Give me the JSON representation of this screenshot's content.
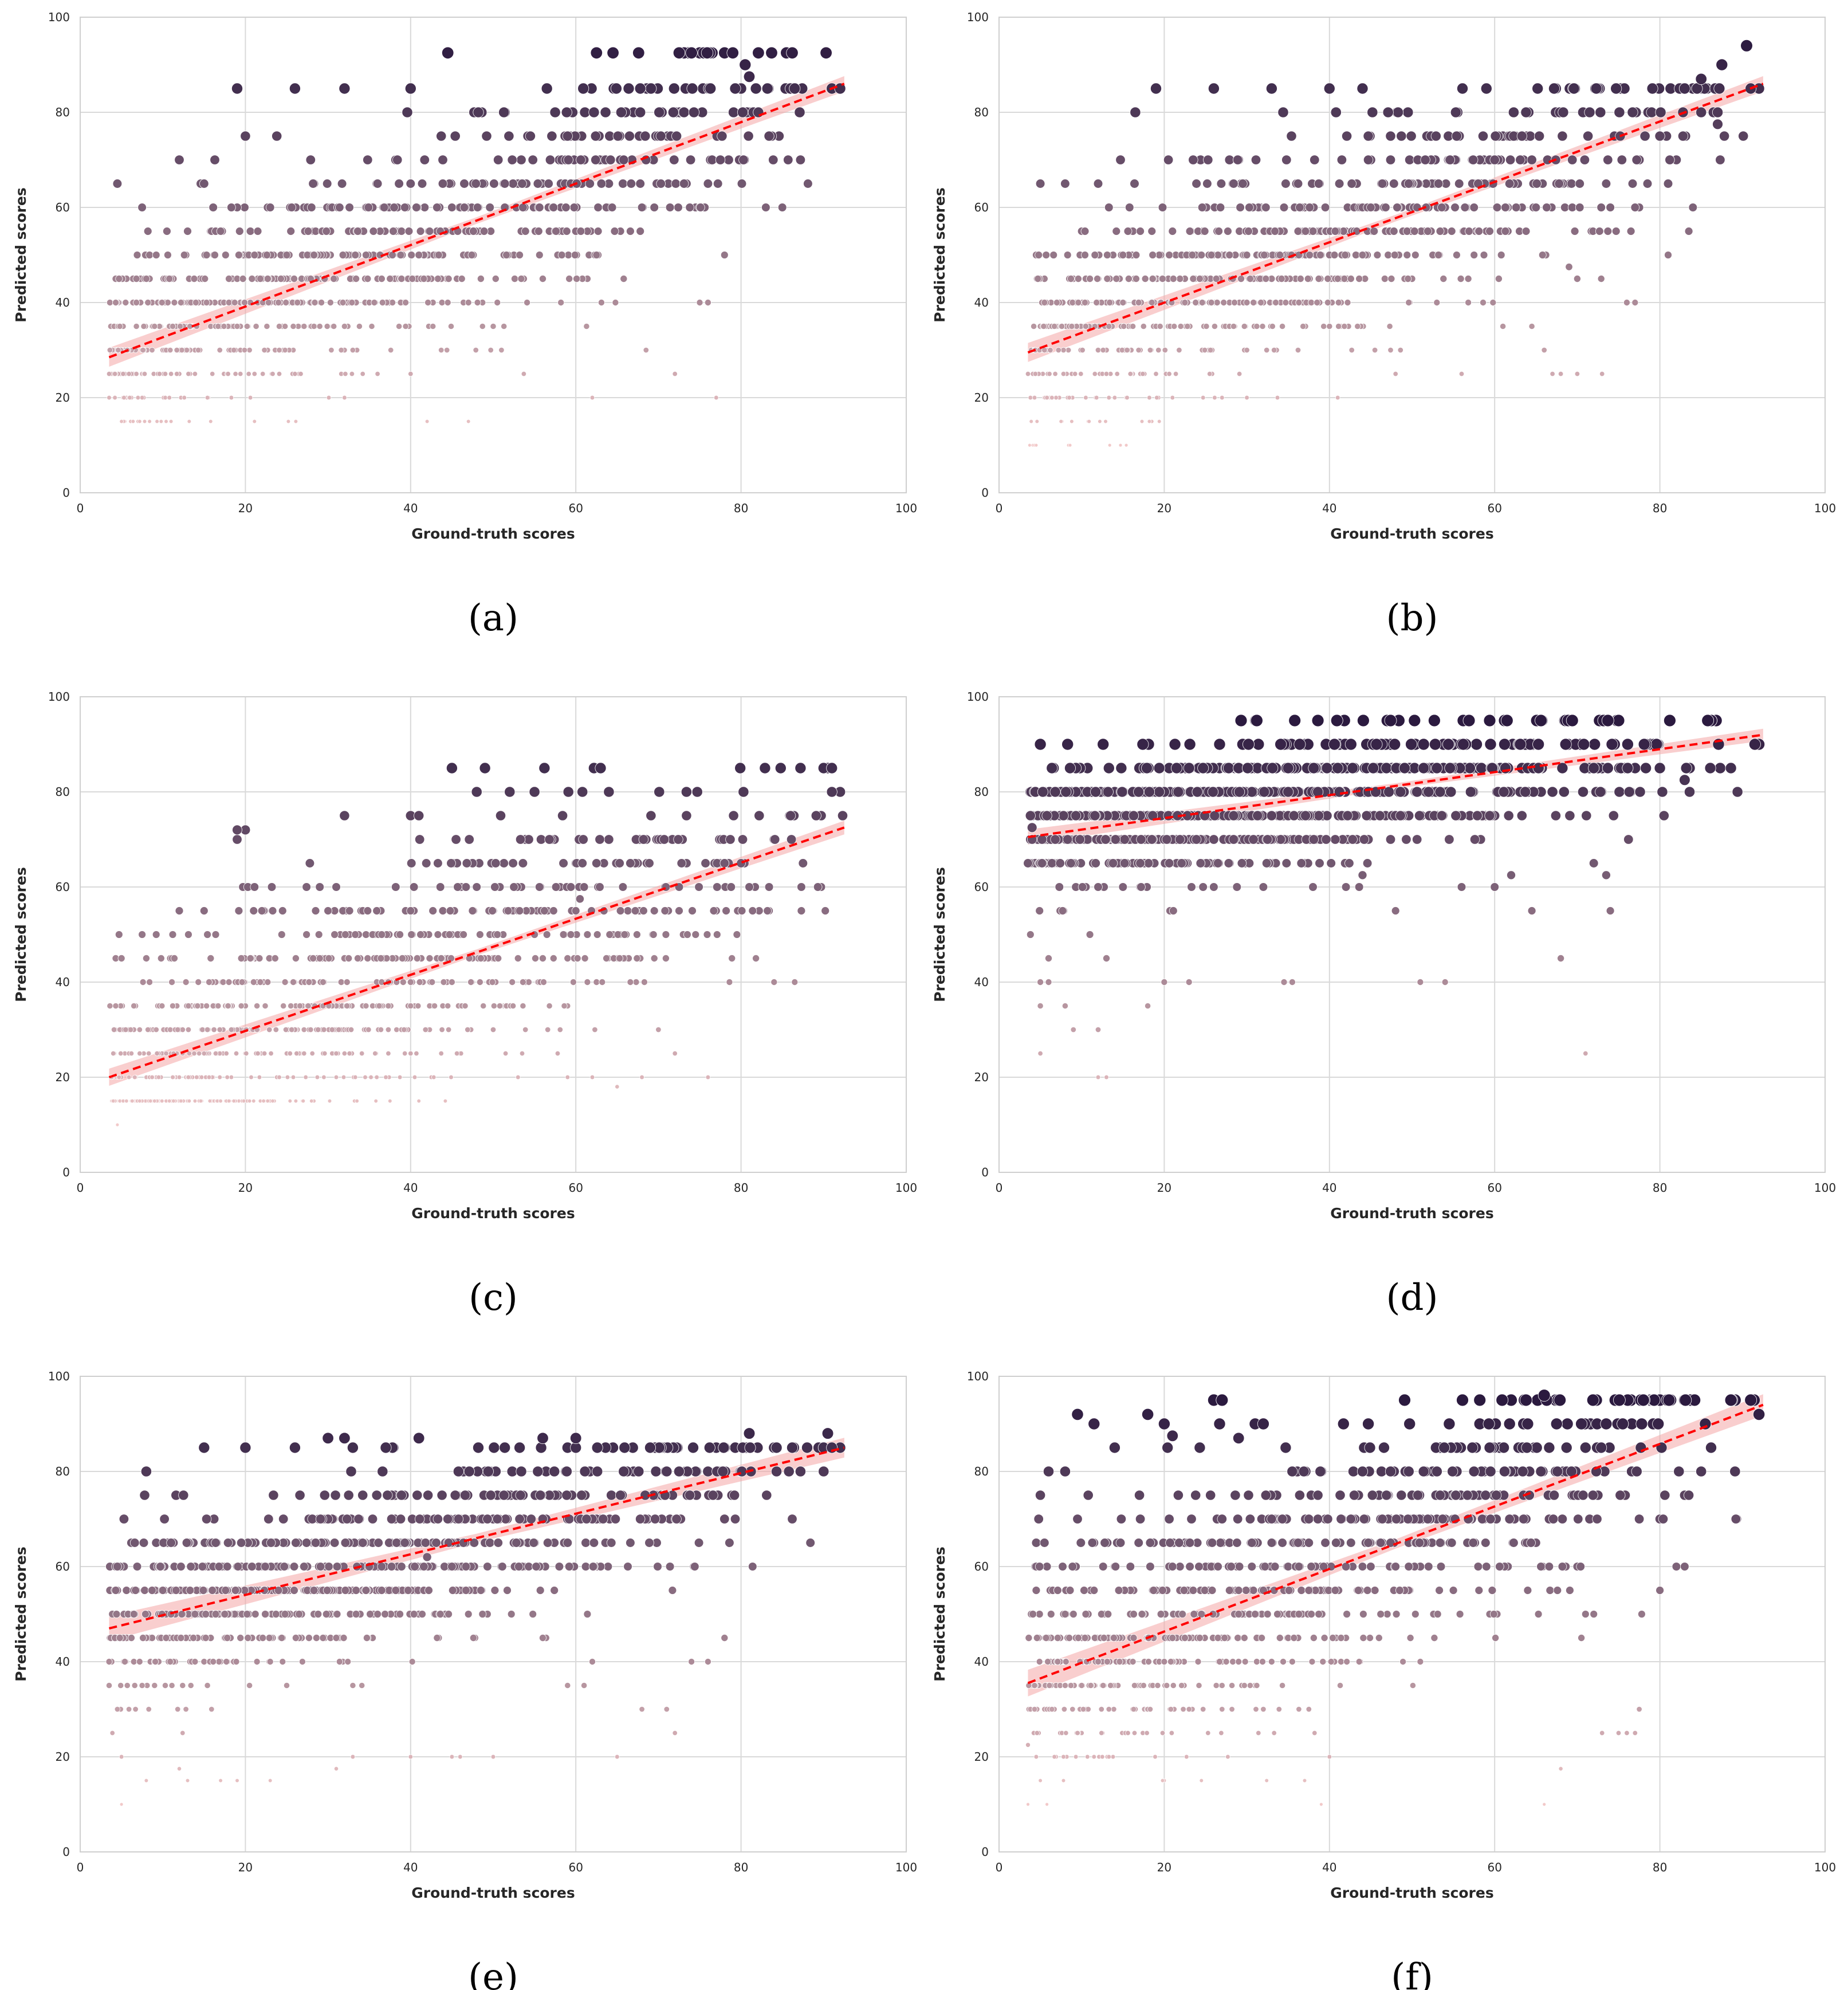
{
  "figure": {
    "background": "#ffffff"
  },
  "style": {
    "grid_color": "#d9d9d9",
    "frame_color": "#cfcfcf",
    "fit_color": "#ff0000",
    "band_color": "#f4a6a6",
    "palette_light": "#f2c9c9",
    "palette_dark": "#2b1a3f"
  },
  "chart_data": [
    {
      "id": "a",
      "type": "scatter",
      "caption": "(a)",
      "xlabel": "Ground-truth scores",
      "ylabel": "Predicted scores",
      "xlim": [
        0,
        100
      ],
      "ylim": [
        0,
        100
      ],
      "xticks": [
        "0",
        "20",
        "40",
        "60",
        "80",
        "100"
      ],
      "yticks": [
        "0",
        "20",
        "40",
        "60",
        "80",
        "100"
      ],
      "grid": true,
      "legend": "none",
      "fit": {
        "x": [
          3.5,
          92.5
        ],
        "y": [
          28.5,
          86
        ],
        "band": 2.0
      },
      "y_levels": [
        15,
        20,
        25,
        30,
        35,
        40,
        45,
        50,
        55,
        60,
        65,
        70,
        75,
        80,
        85,
        92.5
      ],
      "noise": 11,
      "x_min": 3.5,
      "x_max": 92.5,
      "points": [
        [
          3.5,
          25
        ],
        [
          4.5,
          65
        ],
        [
          7.5,
          60
        ],
        [
          12,
          70
        ],
        [
          15,
          65
        ],
        [
          19,
          85
        ],
        [
          20,
          75
        ],
        [
          23,
          60
        ],
        [
          26,
          85
        ],
        [
          32,
          85
        ],
        [
          40,
          85
        ],
        [
          44.5,
          92.5
        ],
        [
          62.5,
          92.5
        ],
        [
          64.5,
          92.5
        ],
        [
          72.5,
          92.5
        ],
        [
          78,
          92.5
        ],
        [
          79,
          92.5
        ],
        [
          80.5,
          90
        ],
        [
          81,
          87.5
        ],
        [
          91,
          85
        ],
        [
          92,
          85
        ],
        [
          62,
          20
        ],
        [
          68.5,
          30
        ],
        [
          72,
          25
        ],
        [
          75,
          40
        ],
        [
          76,
          40
        ],
        [
          77,
          20
        ],
        [
          78,
          50
        ],
        [
          83,
          60
        ],
        [
          85,
          60
        ],
        [
          33,
          30
        ],
        [
          36,
          25
        ],
        [
          40,
          25
        ],
        [
          42,
          15
        ],
        [
          47,
          15
        ]
      ]
    },
    {
      "id": "b",
      "type": "scatter",
      "caption": "(b)",
      "xlabel": "Ground-truth scores",
      "ylabel": "Predicted scores",
      "xlim": [
        0,
        100
      ],
      "ylim": [
        0,
        100
      ],
      "xticks": [
        "0",
        "20",
        "40",
        "60",
        "80",
        "100"
      ],
      "yticks": [
        "0",
        "20",
        "40",
        "60",
        "80",
        "100"
      ],
      "grid": true,
      "legend": "none",
      "fit": {
        "x": [
          3.5,
          92.5
        ],
        "y": [
          29.5,
          86
        ],
        "band": 2.0
      },
      "y_levels": [
        10,
        15,
        20,
        25,
        30,
        35,
        40,
        45,
        50,
        55,
        60,
        65,
        70,
        75,
        80,
        85
      ],
      "noise": 11,
      "x_min": 3.5,
      "x_max": 92.5,
      "points": [
        [
          4.5,
          10
        ],
        [
          3.5,
          25
        ],
        [
          5,
          65
        ],
        [
          8,
          65
        ],
        [
          12,
          65
        ],
        [
          19,
          85
        ],
        [
          26,
          85
        ],
        [
          33,
          85
        ],
        [
          40,
          85
        ],
        [
          44,
          85
        ],
        [
          90.5,
          94
        ],
        [
          87.5,
          90
        ],
        [
          85,
          87
        ],
        [
          92,
          85
        ],
        [
          91,
          85
        ],
        [
          69,
          47.5
        ],
        [
          70,
          45
        ],
        [
          73,
          25
        ],
        [
          67,
          25
        ],
        [
          64.5,
          35
        ],
        [
          66,
          30
        ],
        [
          68,
          25
        ],
        [
          70,
          25
        ],
        [
          76,
          40
        ],
        [
          77,
          40
        ],
        [
          81,
          50
        ],
        [
          87,
          80
        ],
        [
          87,
          77.5
        ],
        [
          83.5,
          55
        ],
        [
          84,
          60
        ],
        [
          30,
          20
        ],
        [
          27,
          20
        ],
        [
          21,
          20
        ],
        [
          41,
          20
        ],
        [
          48,
          25
        ],
        [
          56,
          25
        ],
        [
          61,
          35
        ],
        [
          45.5,
          30
        ]
      ]
    },
    {
      "id": "c",
      "type": "scatter",
      "caption": "(c)",
      "xlabel": "Ground-truth scores",
      "ylabel": "Predicted scores",
      "xlim": [
        0,
        100
      ],
      "ylim": [
        0,
        100
      ],
      "xticks": [
        "0",
        "20",
        "40",
        "60",
        "80",
        "100"
      ],
      "yticks": [
        "0",
        "20",
        "40",
        "60",
        "80",
        "100"
      ],
      "grid": true,
      "legend": "none",
      "fit": {
        "x": [
          3.5,
          92.5
        ],
        "y": [
          20,
          72.5
        ],
        "band": 1.8
      },
      "y_levels": [
        15,
        20,
        25,
        30,
        35,
        40,
        45,
        50,
        55,
        60,
        65,
        70,
        75,
        80,
        85
      ],
      "noise": 12,
      "x_min": 3.5,
      "x_max": 92.5,
      "points": [
        [
          4.5,
          10
        ],
        [
          5,
          45
        ],
        [
          7.5,
          50
        ],
        [
          12,
          55
        ],
        [
          15,
          55
        ],
        [
          19,
          70
        ],
        [
          20,
          72
        ],
        [
          19,
          72
        ],
        [
          32,
          75
        ],
        [
          40,
          75
        ],
        [
          41,
          75
        ],
        [
          45,
          85
        ],
        [
          48,
          80
        ],
        [
          52,
          80
        ],
        [
          55,
          80
        ],
        [
          63,
          85
        ],
        [
          90,
          85
        ],
        [
          91,
          85
        ],
        [
          92,
          80
        ],
        [
          91,
          80
        ],
        [
          86.5,
          40
        ],
        [
          84,
          40
        ],
        [
          76,
          20
        ],
        [
          72,
          25
        ],
        [
          70,
          30
        ],
        [
          68,
          20
        ],
        [
          65,
          18
        ],
        [
          62,
          20
        ],
        [
          59,
          20
        ],
        [
          53,
          20
        ],
        [
          41,
          15
        ],
        [
          28,
          15
        ],
        [
          27,
          15
        ],
        [
          17,
          15
        ],
        [
          18,
          15
        ],
        [
          60.5,
          57.5
        ]
      ]
    },
    {
      "id": "d",
      "type": "scatter",
      "caption": "(d)",
      "xlabel": "Ground-truth scores",
      "ylabel": "Predicted scores",
      "xlim": [
        0,
        100
      ],
      "ylim": [
        0,
        100
      ],
      "xticks": [
        "0",
        "20",
        "40",
        "60",
        "80",
        "100"
      ],
      "yticks": [
        "0",
        "20",
        "40",
        "60",
        "80",
        "100"
      ],
      "grid": true,
      "legend": "none",
      "fit": {
        "x": [
          3.5,
          92.5
        ],
        "y": [
          70.5,
          92
        ],
        "band": 1.6
      },
      "y_levels": [
        35,
        40,
        45,
        50,
        55,
        60,
        65,
        70,
        75,
        80,
        85,
        90,
        95
      ],
      "noise": 7,
      "x_min": 3.5,
      "x_max": 92.5,
      "points": [
        [
          5,
          90
        ],
        [
          4,
          72.5
        ],
        [
          3.5,
          65
        ],
        [
          5,
          40
        ],
        [
          5,
          35
        ],
        [
          6,
          40
        ],
        [
          6,
          45
        ],
        [
          5,
          25
        ],
        [
          8,
          35
        ],
        [
          9,
          30
        ],
        [
          11,
          50
        ],
        [
          12,
          30
        ],
        [
          13,
          45
        ],
        [
          12,
          20
        ],
        [
          13,
          20
        ],
        [
          18,
          35
        ],
        [
          20,
          40
        ],
        [
          23,
          40
        ],
        [
          34.5,
          40
        ],
        [
          35.5,
          40
        ],
        [
          51,
          40
        ],
        [
          54,
          40
        ],
        [
          71,
          25
        ],
        [
          68,
          45
        ],
        [
          72,
          65
        ],
        [
          73.5,
          62.5
        ],
        [
          74,
          55
        ],
        [
          83,
          82.5
        ],
        [
          92,
          90
        ],
        [
          91.5,
          90
        ],
        [
          64.5,
          55
        ],
        [
          60,
          60
        ],
        [
          48,
          55
        ],
        [
          56,
          60
        ],
        [
          62,
          62.5
        ],
        [
          42,
          60
        ],
        [
          26,
          60
        ],
        [
          38,
          60
        ],
        [
          44,
          62.5
        ]
      ]
    },
    {
      "id": "e",
      "type": "scatter",
      "caption": "(e)",
      "xlabel": "Ground-truth scores",
      "ylabel": "Predicted scores",
      "xlim": [
        0,
        100
      ],
      "ylim": [
        0,
        100
      ],
      "xticks": [
        "0",
        "20",
        "40",
        "60",
        "80",
        "100"
      ],
      "yticks": [
        "0",
        "20",
        "40",
        "60",
        "80",
        "100"
      ],
      "grid": true,
      "legend": "none",
      "fit": {
        "x": [
          3.5,
          92.5
        ],
        "y": [
          47,
          85
        ],
        "band": 2.6
      },
      "y_levels": [
        10,
        15,
        20,
        25,
        30,
        35,
        40,
        45,
        50,
        55,
        60,
        65,
        70,
        75,
        80,
        85
      ],
      "noise": 9,
      "x_min": 3.5,
      "x_max": 92.5,
      "points": [
        [
          3.5,
          40
        ],
        [
          4.5,
          60
        ],
        [
          5,
          10
        ],
        [
          5,
          20
        ],
        [
          4.5,
          30
        ],
        [
          8,
          80
        ],
        [
          8,
          15
        ],
        [
          10,
          55
        ],
        [
          12,
          17.5
        ],
        [
          13,
          15
        ],
        [
          15,
          85
        ],
        [
          17,
          15
        ],
        [
          19,
          15
        ],
        [
          20,
          85
        ],
        [
          23,
          15
        ],
        [
          26,
          85
        ],
        [
          30,
          87
        ],
        [
          32,
          87
        ],
        [
          41,
          87
        ],
        [
          56,
          87
        ],
        [
          60,
          87
        ],
        [
          81,
          88
        ],
        [
          90.5,
          88
        ],
        [
          92,
          85
        ],
        [
          91,
          85
        ],
        [
          72,
          25
        ],
        [
          71,
          30
        ],
        [
          68,
          30
        ],
        [
          65,
          20
        ],
        [
          59,
          35
        ],
        [
          61,
          35
        ],
        [
          62,
          40
        ],
        [
          78,
          45
        ],
        [
          76,
          40
        ],
        [
          74,
          40
        ],
        [
          42,
          62
        ],
        [
          40,
          20
        ],
        [
          33,
          20
        ],
        [
          31,
          17.5
        ],
        [
          50,
          20
        ],
        [
          46,
          20
        ],
        [
          45,
          20
        ],
        [
          56,
          45
        ]
      ]
    },
    {
      "id": "f",
      "type": "scatter",
      "caption": "(f)",
      "xlabel": "Ground-truth scores",
      "ylabel": "Predicted scores",
      "xlim": [
        0,
        100
      ],
      "ylim": [
        0,
        100
      ],
      "xticks": [
        "0",
        "20",
        "40",
        "60",
        "80",
        "100"
      ],
      "yticks": [
        "0",
        "20",
        "40",
        "60",
        "80",
        "100"
      ],
      "grid": true,
      "legend": "none",
      "fit": {
        "x": [
          3.5,
          92.5
        ],
        "y": [
          35.5,
          94
        ],
        "band": 2.8
      },
      "y_levels": [
        10,
        15,
        20,
        25,
        30,
        35,
        40,
        45,
        50,
        55,
        60,
        65,
        70,
        75,
        80,
        85,
        90,
        95
      ],
      "noise": 13,
      "x_min": 3.5,
      "x_max": 92.5,
      "points": [
        [
          3.5,
          10
        ],
        [
          3.5,
          22.5
        ],
        [
          5,
          15
        ],
        [
          5,
          75
        ],
        [
          6,
          80
        ],
        [
          8,
          80
        ],
        [
          9.5,
          92
        ],
        [
          11.5,
          90
        ],
        [
          14,
          85
        ],
        [
          18,
          92
        ],
        [
          20,
          90
        ],
        [
          21,
          87.5
        ],
        [
          26,
          95
        ],
        [
          27,
          95
        ],
        [
          29,
          87
        ],
        [
          31,
          90
        ],
        [
          32,
          90
        ],
        [
          66,
          10
        ],
        [
          68,
          17.5
        ],
        [
          73,
          25
        ],
        [
          75,
          25
        ],
        [
          76,
          25
        ],
        [
          77,
          25
        ],
        [
          77.5,
          30
        ],
        [
          72,
          50
        ],
        [
          71,
          50
        ],
        [
          70.5,
          45
        ],
        [
          80,
          55
        ],
        [
          82,
          60
        ],
        [
          83,
          60
        ],
        [
          83.5,
          75
        ],
        [
          92,
          92
        ],
        [
          91,
          95
        ],
        [
          66,
          96
        ],
        [
          39,
          10
        ],
        [
          37,
          15
        ],
        [
          40,
          20
        ]
      ]
    }
  ]
}
